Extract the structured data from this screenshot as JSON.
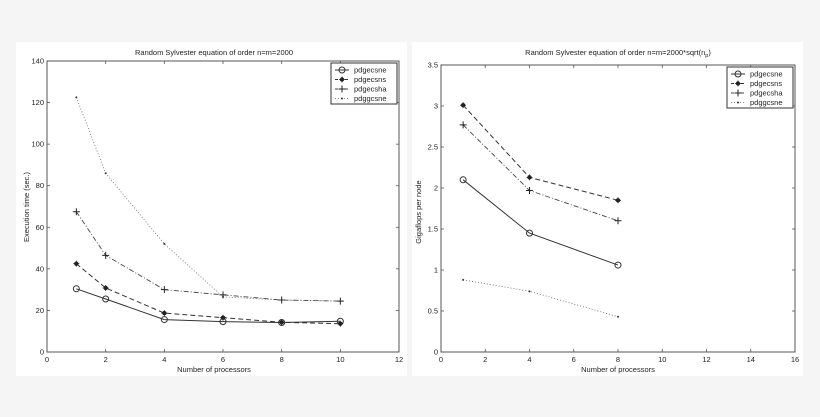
{
  "chart_data": [
    {
      "type": "line",
      "title": "Random Sylvester equation of order n=m=2000",
      "xlabel": "Number of processors",
      "ylabel": "Execution time (sec.)",
      "xlim": [
        0,
        12
      ],
      "ylim": [
        0,
        140
      ],
      "xticks": [
        0,
        2,
        4,
        6,
        8,
        10,
        12
      ],
      "yticks": [
        0,
        20,
        40,
        60,
        80,
        100,
        120,
        140
      ],
      "grid": false,
      "legend_position": "upper right",
      "series": [
        {
          "name": "pdgecsne",
          "marker": "circle",
          "linestyle": "solid",
          "x": [
            1,
            2,
            4,
            6,
            8,
            10
          ],
          "values": [
            30.4,
            25.5,
            15.6,
            14.6,
            14.2,
            14.8
          ]
        },
        {
          "name": "pdgecsns",
          "marker": "filled-circle",
          "linestyle": "dashed",
          "x": [
            1,
            2,
            4,
            6,
            8,
            10
          ],
          "values": [
            42.5,
            30.8,
            18.7,
            16.5,
            14.3,
            13.6
          ]
        },
        {
          "name": "pdgecsha",
          "marker": "plus",
          "linestyle": "dashdot",
          "x": [
            1,
            2,
            4,
            6,
            8,
            10
          ],
          "values": [
            67.5,
            46.5,
            30.0,
            27.5,
            25.0,
            24.5
          ]
        },
        {
          "name": "pdggcsne",
          "marker": "dot",
          "linestyle": "dotted",
          "x": [
            1,
            2,
            4,
            6,
            8,
            10
          ],
          "values": [
            122.5,
            86.0,
            52.0,
            26.5,
            25.0,
            24.5
          ]
        }
      ]
    },
    {
      "type": "line",
      "title": "Random Sylvester equation of order n=m=2000*sqrt(n_p)",
      "title_main": "Random Sylvester equation of order n=m=2000*sqrt(n",
      "title_sub": "p",
      "title_tail": ")",
      "xlabel": "Number of processors",
      "ylabel": "Gigaflops per node",
      "xlim": [
        0,
        16
      ],
      "ylim": [
        0,
        3.5
      ],
      "xticks": [
        0,
        2,
        4,
        6,
        8,
        10,
        12,
        14,
        16
      ],
      "yticks": [
        0,
        0.5,
        1,
        1.5,
        2,
        2.5,
        3,
        3.5
      ],
      "grid": false,
      "legend_position": "upper right",
      "series": [
        {
          "name": "pdgecsne",
          "marker": "circle",
          "linestyle": "solid",
          "x": [
            1,
            4,
            8
          ],
          "values": [
            2.1,
            1.45,
            1.06
          ]
        },
        {
          "name": "pdgecsns",
          "marker": "filled-circle",
          "linestyle": "dashed",
          "x": [
            1,
            4,
            8
          ],
          "values": [
            3.01,
            2.13,
            1.85
          ]
        },
        {
          "name": "pdgecsha",
          "marker": "plus",
          "linestyle": "dashdot",
          "x": [
            1,
            4,
            8
          ],
          "values": [
            2.77,
            1.97,
            1.6
          ]
        },
        {
          "name": "pdggcsne",
          "marker": "dot",
          "linestyle": "dotted",
          "x": [
            1,
            4,
            8
          ],
          "values": [
            0.88,
            0.74,
            0.43
          ]
        }
      ]
    }
  ],
  "charts": [
    {
      "title": "Random Sylvester equation of order n=m=2000",
      "xlabel": "Number of processors",
      "ylabel": "Execution time (sec.)"
    },
    {
      "title_main": "Random Sylvester equation of order n=m=2000*sqrt(n",
      "title_sub": "p",
      "title_tail": ")",
      "xlabel": "Number of processors",
      "ylabel": "Gigaflops per node"
    }
  ]
}
